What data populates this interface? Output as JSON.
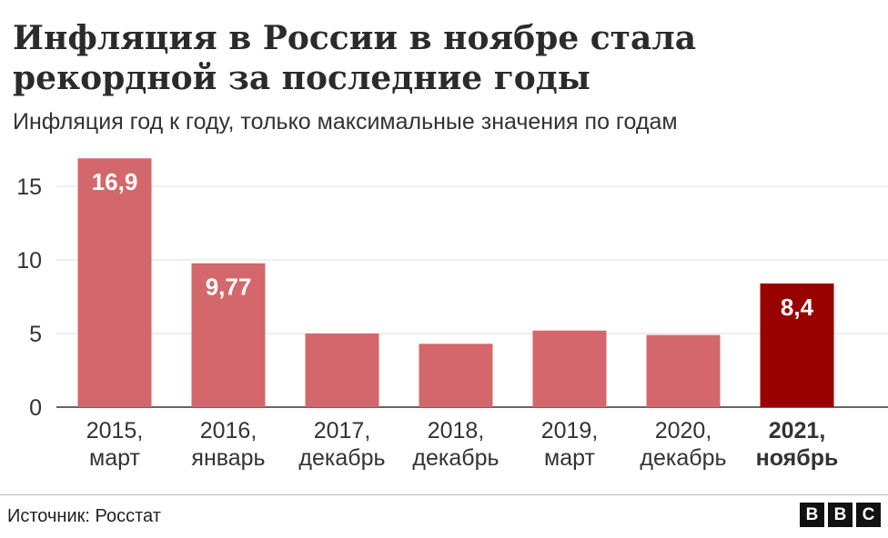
{
  "title": "Инфляция в России в ноябре стала рекордной за последние годы",
  "subtitle": "Инфляция год к году, только максимальные значения по годам",
  "source": "Источник: Росстат",
  "logo_letters": [
    "B",
    "B",
    "C"
  ],
  "colors": {
    "bar": "#d3676b",
    "highlight": "#990000",
    "grid": "#dddddd",
    "axis": "#333333"
  },
  "chart_data": {
    "type": "bar",
    "categories": [
      [
        "2015,",
        "март"
      ],
      [
        "2016,",
        "январь"
      ],
      [
        "2017,",
        "декабрь"
      ],
      [
        "2018,",
        "декабрь"
      ],
      [
        "2019,",
        "март"
      ],
      [
        "2020,",
        "декабрь"
      ],
      [
        "2021,",
        "ноябрь"
      ]
    ],
    "values": [
      16.9,
      9.77,
      5.0,
      4.3,
      5.2,
      4.9,
      8.4
    ],
    "data_labels": [
      "16,9",
      "9,77",
      "",
      "",
      "",
      "",
      "8,4"
    ],
    "highlight_index": 6,
    "yticks": [
      0,
      5,
      10,
      15
    ],
    "ylim": [
      0,
      17.5
    ],
    "grid": true,
    "xlabel": "",
    "ylabel": ""
  }
}
